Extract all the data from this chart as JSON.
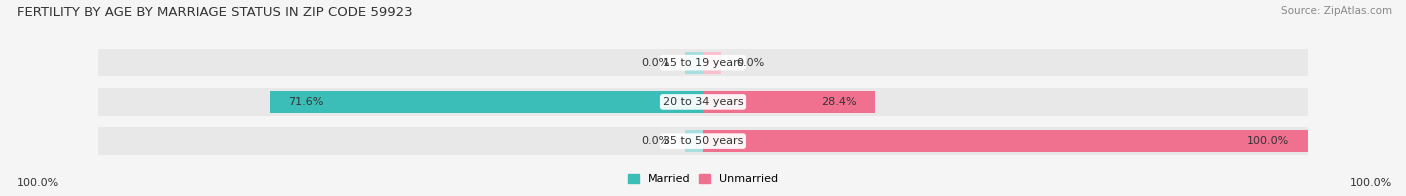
{
  "title": "FERTILITY BY AGE BY MARRIAGE STATUS IN ZIP CODE 59923",
  "source": "Source: ZipAtlas.com",
  "categories": [
    "15 to 19 years",
    "20 to 34 years",
    "35 to 50 years"
  ],
  "married_values": [
    0.0,
    71.6,
    0.0
  ],
  "unmarried_values": [
    0.0,
    28.4,
    100.0
  ],
  "married_color": "#3bbdb8",
  "married_color_light": "#a8dedd",
  "unmarried_color": "#f07090",
  "unmarried_color_light": "#f9c0d0",
  "bar_bg_color": "#e8e8e8",
  "background_color": "#f5f5f5",
  "title_fontsize": 9.5,
  "label_fontsize": 8,
  "tick_fontsize": 8,
  "source_fontsize": 7.5,
  "left_label": "100.0%",
  "right_label": "100.0%",
  "max_val": 100.0
}
